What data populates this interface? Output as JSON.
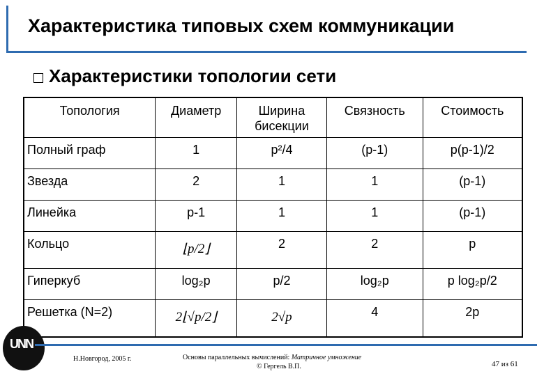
{
  "title": "Характеристика типовых схем коммуникации",
  "subtitle": "Характеристики топологии сети",
  "table": {
    "headers": [
      "Топология",
      "Диаметр",
      "Ширина бисекции",
      "Связность",
      "Стоимость"
    ],
    "rows": [
      [
        "Полный граф",
        "1",
        "p²/4",
        "(p-1)",
        "p(p-1)/2"
      ],
      [
        "Звезда",
        "2",
        "1",
        "1",
        "(p-1)"
      ],
      [
        "Линейка",
        "p-1",
        "1",
        "1",
        "(p-1)"
      ],
      [
        "Кольцо",
        "⌊p/2⌋",
        "2",
        "2",
        "p"
      ],
      [
        "Гиперкуб",
        "log₂p",
        "p/2",
        "log₂p",
        "p log₂p/2"
      ],
      [
        "Решетка (N=2)",
        "2⌊√p/2⌋",
        "2√p",
        "4",
        "2p"
      ]
    ]
  },
  "footer": {
    "left": "Н.Новгород, 2005 г.",
    "center": "Основы параллельных вычислений:",
    "center_italic": "Матричное умножение",
    "author": "© Гергель В.П.",
    "page": "47 из 61",
    "logo": "UNN"
  },
  "colors": {
    "accent": "#2e6bb0"
  }
}
